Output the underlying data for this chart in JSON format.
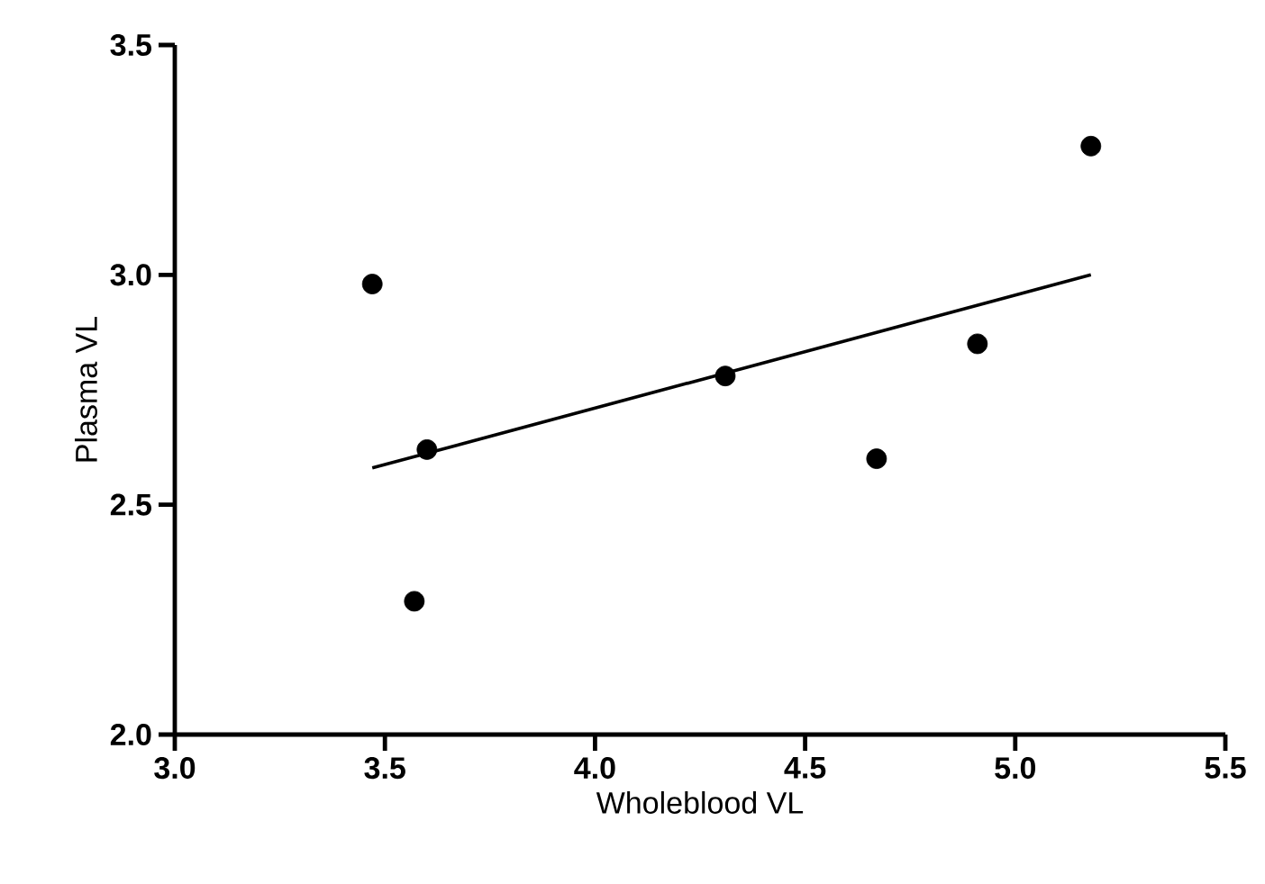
{
  "chart_data": {
    "type": "scatter",
    "xlabel": "Wholeblood VL",
    "ylabel": "Plasma VL",
    "xlim": [
      3.0,
      5.5
    ],
    "ylim": [
      2.0,
      3.5
    ],
    "xticks": [
      {
        "value": 3.0,
        "label": "3.0"
      },
      3.5,
      {
        "value": 4.0,
        "label": "4.0"
      },
      4.5,
      {
        "value": 5.0,
        "label": "5.0"
      },
      5.5
    ],
    "yticks": [
      {
        "value": 2.0,
        "label": "2.0"
      },
      2.5,
      {
        "value": 3.0,
        "label": "3.0"
      },
      3.5
    ],
    "grid": false,
    "series": [
      {
        "marker": "circle",
        "color": "#000000",
        "x": [
          3.47,
          3.6,
          3.57,
          4.31,
          4.67,
          4.91,
          5.18
        ],
        "values": [
          2.98,
          2.62,
          2.29,
          2.78,
          2.6,
          2.85,
          3.28
        ]
      },
      {
        "type": "line",
        "marker": "none",
        "color": "#000000",
        "x": [
          3.47,
          5.18
        ],
        "values": [
          2.58,
          3.0
        ]
      }
    ]
  }
}
